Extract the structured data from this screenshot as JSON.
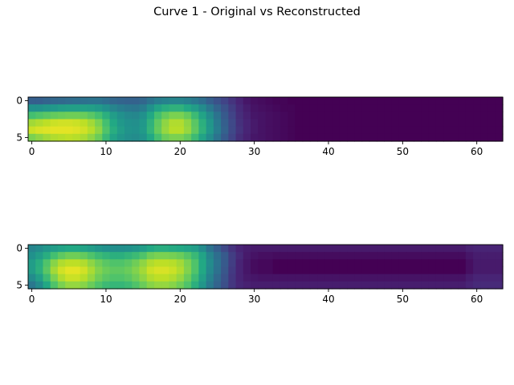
{
  "title": "Curve 1 - Original vs Reconstructed",
  "chart_data": [
    {
      "type": "heatmap",
      "colormap": "viridis",
      "rows": 6,
      "cols": 64,
      "xlim": [
        -0.5,
        63.5
      ],
      "ylim": [
        5.5,
        -0.5
      ],
      "x_ticks": [
        0,
        10,
        20,
        30,
        40,
        50,
        60
      ],
      "y_ticks": [
        0,
        5
      ],
      "values": [
        [
          0.3,
          0.3,
          0.32,
          0.33,
          0.34,
          0.35,
          0.36,
          0.37,
          0.38,
          0.38,
          0.36,
          0.33,
          0.32,
          0.31,
          0.31,
          0.33,
          0.38,
          0.42,
          0.44,
          0.45,
          0.45,
          0.43,
          0.4,
          0.36,
          0.3,
          0.25,
          0.2,
          0.15,
          0.1,
          0.06,
          0.04,
          0.03,
          0.02,
          0.01,
          0.01,
          0,
          0,
          0,
          0,
          0,
          0,
          0,
          0,
          0,
          0,
          0,
          0,
          0,
          0,
          0,
          0,
          0,
          0,
          0,
          0,
          0,
          0,
          0,
          0,
          0,
          0,
          0,
          0,
          0
        ],
        [
          0.5,
          0.5,
          0.52,
          0.53,
          0.55,
          0.56,
          0.56,
          0.57,
          0.56,
          0.54,
          0.5,
          0.45,
          0.42,
          0.4,
          0.39,
          0.42,
          0.5,
          0.58,
          0.62,
          0.64,
          0.64,
          0.6,
          0.55,
          0.48,
          0.4,
          0.32,
          0.25,
          0.18,
          0.12,
          0.08,
          0.05,
          0.04,
          0.03,
          0.02,
          0.01,
          0.01,
          0,
          0,
          0,
          0,
          0,
          0,
          0,
          0,
          0,
          0,
          0,
          0,
          0,
          0,
          0,
          0,
          0,
          0,
          0,
          0,
          0,
          0,
          0,
          0,
          0,
          0,
          0,
          0
        ],
        [
          0.7,
          0.72,
          0.74,
          0.76,
          0.77,
          0.78,
          0.78,
          0.77,
          0.74,
          0.7,
          0.63,
          0.55,
          0.5,
          0.47,
          0.46,
          0.5,
          0.6,
          0.7,
          0.76,
          0.8,
          0.8,
          0.76,
          0.68,
          0.58,
          0.48,
          0.38,
          0.28,
          0.2,
          0.13,
          0.09,
          0.06,
          0.05,
          0.04,
          0.03,
          0.02,
          0.01,
          0,
          0,
          0,
          0,
          0,
          0,
          0,
          0,
          0,
          0,
          0,
          0,
          0,
          0,
          0,
          0,
          0,
          0,
          0,
          0,
          0,
          0,
          0,
          0,
          0,
          0,
          0,
          0
        ],
        [
          0.86,
          0.88,
          0.9,
          0.92,
          0.93,
          0.93,
          0.92,
          0.9,
          0.86,
          0.8,
          0.7,
          0.6,
          0.53,
          0.5,
          0.49,
          0.53,
          0.64,
          0.75,
          0.83,
          0.88,
          0.88,
          0.83,
          0.74,
          0.63,
          0.52,
          0.41,
          0.3,
          0.22,
          0.14,
          0.1,
          0.07,
          0.05,
          0.04,
          0.03,
          0.02,
          0.01,
          0,
          0,
          0,
          0,
          0,
          0,
          0,
          0,
          0,
          0,
          0,
          0,
          0,
          0,
          0,
          0,
          0,
          0,
          0,
          0,
          0,
          0,
          0,
          0,
          0,
          0,
          0,
          0
        ],
        [
          0.92,
          0.94,
          0.95,
          0.96,
          0.96,
          0.96,
          0.95,
          0.93,
          0.89,
          0.83,
          0.72,
          0.62,
          0.55,
          0.51,
          0.5,
          0.54,
          0.65,
          0.76,
          0.84,
          0.89,
          0.89,
          0.84,
          0.75,
          0.64,
          0.53,
          0.42,
          0.31,
          0.22,
          0.15,
          0.1,
          0.07,
          0.05,
          0.04,
          0.03,
          0.02,
          0.01,
          0,
          0,
          0,
          0,
          0,
          0,
          0,
          0,
          0,
          0,
          0,
          0,
          0,
          0,
          0,
          0,
          0,
          0,
          0,
          0,
          0,
          0,
          0,
          0,
          0,
          0,
          0,
          0
        ],
        [
          0.8,
          0.83,
          0.86,
          0.88,
          0.89,
          0.9,
          0.89,
          0.87,
          0.83,
          0.77,
          0.67,
          0.58,
          0.52,
          0.49,
          0.48,
          0.51,
          0.6,
          0.7,
          0.77,
          0.8,
          0.8,
          0.76,
          0.68,
          0.58,
          0.48,
          0.38,
          0.28,
          0.2,
          0.13,
          0.09,
          0.06,
          0.05,
          0.04,
          0.03,
          0.02,
          0.01,
          0,
          0,
          0,
          0,
          0,
          0,
          0,
          0,
          0,
          0,
          0,
          0,
          0,
          0,
          0,
          0,
          0,
          0,
          0,
          0,
          0,
          0,
          0,
          0,
          0,
          0,
          0,
          0
        ]
      ]
    },
    {
      "type": "heatmap",
      "colormap": "viridis",
      "rows": 6,
      "cols": 64,
      "xlim": [
        -0.5,
        63.5
      ],
      "ylim": [
        5.5,
        -0.5
      ],
      "x_ticks": [
        0,
        10,
        20,
        30,
        40,
        50,
        60
      ],
      "y_ticks": [
        0,
        5
      ],
      "values": [
        [
          0.45,
          0.48,
          0.52,
          0.55,
          0.58,
          0.6,
          0.6,
          0.58,
          0.55,
          0.52,
          0.5,
          0.49,
          0.49,
          0.5,
          0.52,
          0.55,
          0.6,
          0.62,
          0.62,
          0.61,
          0.6,
          0.58,
          0.55,
          0.48,
          0.38,
          0.3,
          0.22,
          0.15,
          0.1,
          0.08,
          0.07,
          0.07,
          0.07,
          0.07,
          0.07,
          0.07,
          0.07,
          0.07,
          0.07,
          0.07,
          0.07,
          0.07,
          0.07,
          0.07,
          0.07,
          0.07,
          0.07,
          0.07,
          0.07,
          0.07,
          0.07,
          0.07,
          0.07,
          0.07,
          0.07,
          0.07,
          0.07,
          0.07,
          0.07,
          0.09,
          0.1,
          0.1,
          0.1,
          0.1
        ],
        [
          0.5,
          0.55,
          0.62,
          0.7,
          0.75,
          0.78,
          0.78,
          0.76,
          0.72,
          0.68,
          0.65,
          0.63,
          0.63,
          0.65,
          0.68,
          0.72,
          0.78,
          0.8,
          0.8,
          0.79,
          0.77,
          0.73,
          0.67,
          0.58,
          0.45,
          0.36,
          0.28,
          0.18,
          0.12,
          0.07,
          0.05,
          0.04,
          0.04,
          0.03,
          0.03,
          0.03,
          0.03,
          0.03,
          0.03,
          0.03,
          0.03,
          0.03,
          0.03,
          0.03,
          0.03,
          0.03,
          0.03,
          0.03,
          0.03,
          0.03,
          0.03,
          0.03,
          0.03,
          0.03,
          0.03,
          0.03,
          0.03,
          0.03,
          0.03,
          0.06,
          0.08,
          0.08,
          0.08,
          0.08
        ],
        [
          0.55,
          0.62,
          0.72,
          0.82,
          0.88,
          0.9,
          0.9,
          0.88,
          0.83,
          0.78,
          0.74,
          0.72,
          0.72,
          0.74,
          0.78,
          0.83,
          0.88,
          0.9,
          0.9,
          0.89,
          0.86,
          0.8,
          0.72,
          0.6,
          0.48,
          0.38,
          0.28,
          0.18,
          0.1,
          0.06,
          0.03,
          0.02,
          0.02,
          0.0,
          0.0,
          0.0,
          0.0,
          0.0,
          0.0,
          0.0,
          0.0,
          0.0,
          0.0,
          0.0,
          0.0,
          0.0,
          0.0,
          0.0,
          0.0,
          0.0,
          0.0,
          0.0,
          0.0,
          0.0,
          0.0,
          0.0,
          0.0,
          0.0,
          0.0,
          0.04,
          0.07,
          0.07,
          0.07,
          0.07
        ],
        [
          0.55,
          0.63,
          0.74,
          0.86,
          0.93,
          0.96,
          0.96,
          0.93,
          0.87,
          0.81,
          0.77,
          0.75,
          0.75,
          0.77,
          0.81,
          0.86,
          0.92,
          0.94,
          0.94,
          0.92,
          0.88,
          0.81,
          0.72,
          0.6,
          0.47,
          0.37,
          0.27,
          0.17,
          0.1,
          0.06,
          0.03,
          0.02,
          0.02,
          0.0,
          0.0,
          0.0,
          0.0,
          0.0,
          0.0,
          0.0,
          0.0,
          0.0,
          0.0,
          0.0,
          0.0,
          0.0,
          0.0,
          0.0,
          0.0,
          0.0,
          0.0,
          0.0,
          0.0,
          0.0,
          0.0,
          0.0,
          0.0,
          0.0,
          0.0,
          0.04,
          0.07,
          0.07,
          0.07,
          0.07
        ],
        [
          0.48,
          0.56,
          0.68,
          0.8,
          0.88,
          0.92,
          0.92,
          0.89,
          0.84,
          0.78,
          0.74,
          0.72,
          0.72,
          0.74,
          0.78,
          0.83,
          0.88,
          0.9,
          0.9,
          0.88,
          0.84,
          0.77,
          0.68,
          0.56,
          0.44,
          0.34,
          0.25,
          0.16,
          0.1,
          0.07,
          0.06,
          0.05,
          0.05,
          0.05,
          0.05,
          0.05,
          0.05,
          0.05,
          0.05,
          0.05,
          0.05,
          0.05,
          0.05,
          0.05,
          0.05,
          0.05,
          0.05,
          0.05,
          0.05,
          0.05,
          0.05,
          0.05,
          0.05,
          0.05,
          0.05,
          0.05,
          0.05,
          0.05,
          0.05,
          0.08,
          0.1,
          0.1,
          0.1,
          0.1
        ],
        [
          0.4,
          0.48,
          0.6,
          0.72,
          0.8,
          0.84,
          0.84,
          0.82,
          0.77,
          0.72,
          0.68,
          0.66,
          0.66,
          0.68,
          0.72,
          0.77,
          0.82,
          0.84,
          0.84,
          0.82,
          0.78,
          0.72,
          0.63,
          0.52,
          0.41,
          0.32,
          0.24,
          0.16,
          0.11,
          0.09,
          0.08,
          0.08,
          0.08,
          0.08,
          0.08,
          0.08,
          0.08,
          0.08,
          0.08,
          0.08,
          0.08,
          0.08,
          0.08,
          0.08,
          0.08,
          0.08,
          0.08,
          0.08,
          0.08,
          0.08,
          0.08,
          0.08,
          0.08,
          0.08,
          0.08,
          0.08,
          0.08,
          0.08,
          0.08,
          0.1,
          0.12,
          0.12,
          0.12,
          0.12
        ]
      ]
    }
  ]
}
